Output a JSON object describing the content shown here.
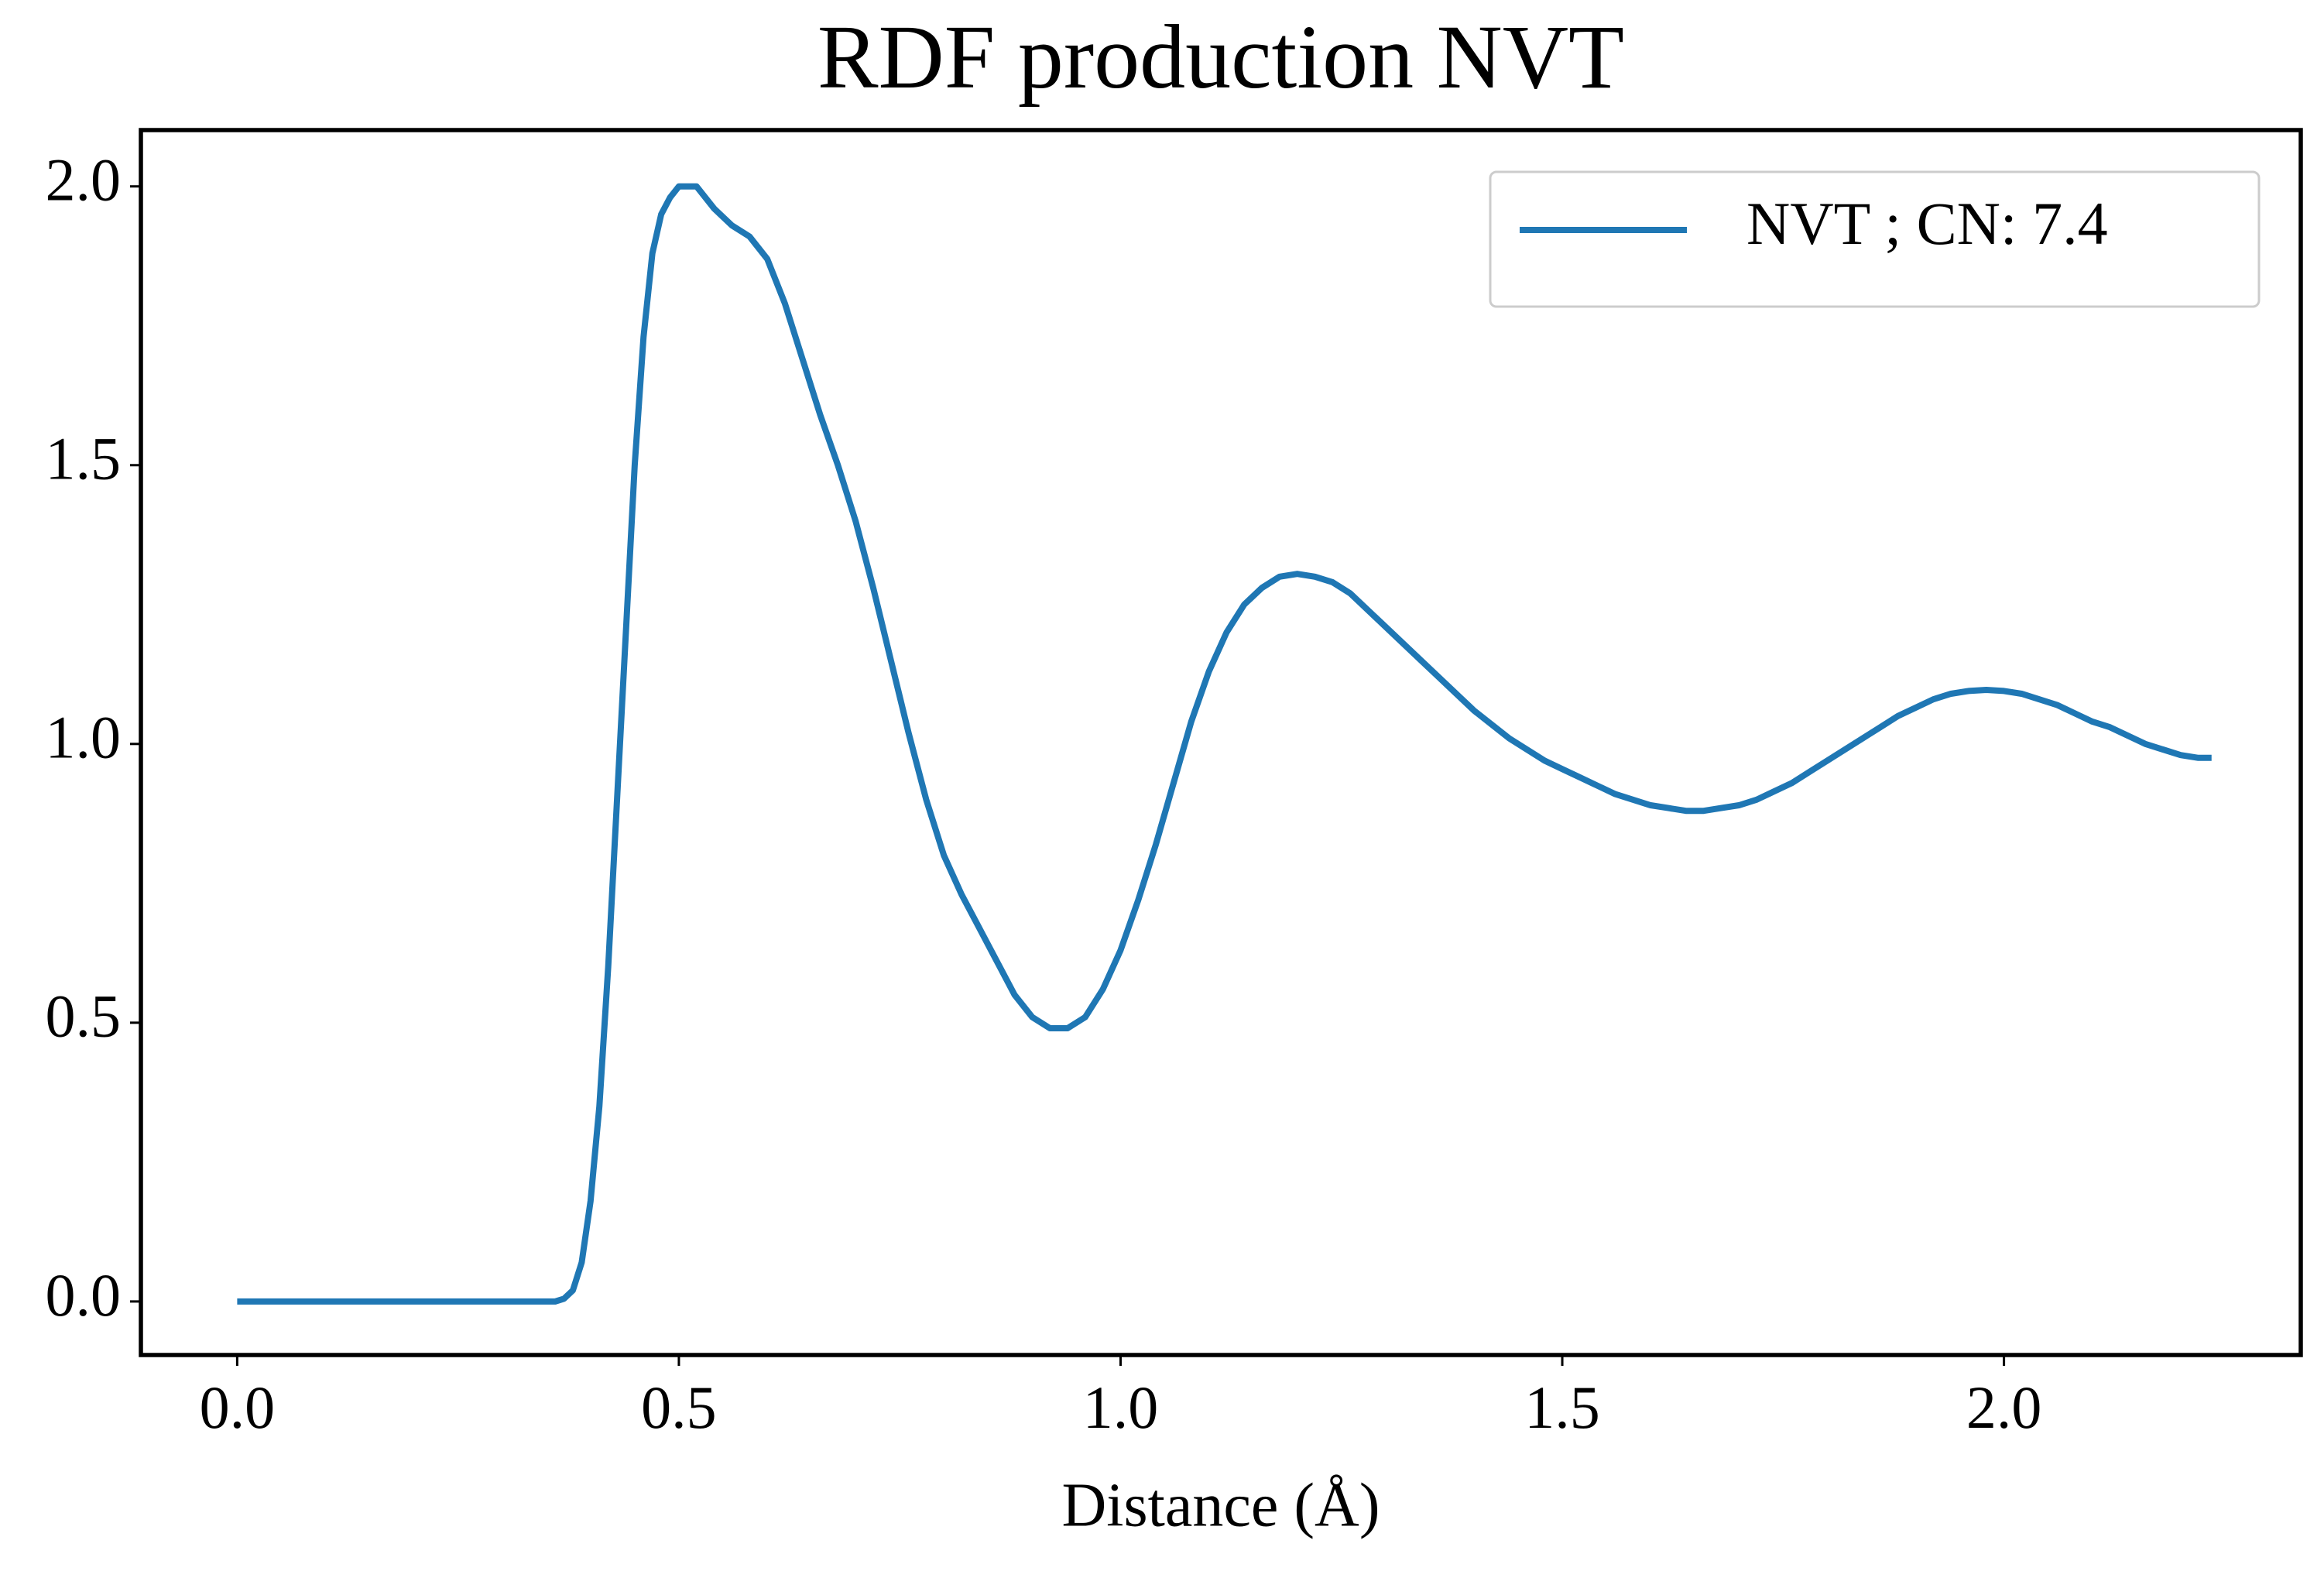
{
  "chart_data": {
    "type": "line",
    "title": "RDF production NVT",
    "xlabel": "Distance (Å)",
    "x": [
      0,
      0.1,
      0.2,
      0.3,
      0.36,
      0.37,
      0.38,
      0.39,
      0.4,
      0.41,
      0.42,
      0.43,
      0.44,
      0.45,
      0.46,
      0.47,
      0.48,
      0.49,
      0.5,
      0.52,
      0.54,
      0.56,
      0.58,
      0.6,
      0.62,
      0.64,
      0.66,
      0.68,
      0.7,
      0.72,
      0.74,
      0.76,
      0.78,
      0.8,
      0.82,
      0.84,
      0.86,
      0.88,
      0.9,
      0.92,
      0.94,
      0.96,
      0.98,
      1.0,
      1.02,
      1.04,
      1.06,
      1.08,
      1.1,
      1.12,
      1.14,
      1.16,
      1.18,
      1.2,
      1.22,
      1.24,
      1.26,
      1.28,
      1.3,
      1.32,
      1.34,
      1.36,
      1.38,
      1.4,
      1.42,
      1.44,
      1.46,
      1.48,
      1.5,
      1.52,
      1.54,
      1.56,
      1.58,
      1.6,
      1.62,
      1.64,
      1.66,
      1.68,
      1.7,
      1.72,
      1.74,
      1.76,
      1.78,
      1.8,
      1.82,
      1.84,
      1.86,
      1.88,
      1.9,
      1.92,
      1.94,
      1.96,
      1.98,
      2.0,
      2.02,
      2.04,
      2.06,
      2.08,
      2.1,
      2.12,
      2.14,
      2.16,
      2.18,
      2.2,
      2.22,
      2.235
    ],
    "series": [
      {
        "name": "NVT ; CN: 7.4",
        "color": "#1f77b4",
        "values": [
          0,
          0,
          0,
          0,
          0,
          0.005,
          0.02,
          0.07,
          0.18,
          0.35,
          0.6,
          0.9,
          1.2,
          1.5,
          1.73,
          1.88,
          1.95,
          1.98,
          2.0,
          2.0,
          1.96,
          1.93,
          1.91,
          1.87,
          1.79,
          1.69,
          1.59,
          1.5,
          1.4,
          1.28,
          1.15,
          1.02,
          0.9,
          0.8,
          0.73,
          0.67,
          0.61,
          0.55,
          0.51,
          0.49,
          0.49,
          0.51,
          0.56,
          0.63,
          0.72,
          0.82,
          0.93,
          1.04,
          1.13,
          1.2,
          1.25,
          1.28,
          1.3,
          1.305,
          1.3,
          1.29,
          1.27,
          1.24,
          1.21,
          1.18,
          1.15,
          1.12,
          1.09,
          1.06,
          1.035,
          1.01,
          0.99,
          0.97,
          0.955,
          0.94,
          0.925,
          0.91,
          0.9,
          0.89,
          0.885,
          0.88,
          0.88,
          0.885,
          0.89,
          0.9,
          0.915,
          0.93,
          0.95,
          0.97,
          0.99,
          1.01,
          1.03,
          1.05,
          1.065,
          1.08,
          1.09,
          1.095,
          1.097,
          1.095,
          1.09,
          1.08,
          1.07,
          1.055,
          1.04,
          1.03,
          1.015,
          1.0,
          0.99,
          0.98,
          0.975,
          0.975
        ]
      }
    ],
    "xlim": [
      -0.109,
      2.336
    ],
    "ylim": [
      -0.096,
      2.101
    ],
    "xticks": [
      {
        "value": 0,
        "label": "0.0"
      },
      0.5,
      {
        "value": 1,
        "label": "1.0"
      },
      1.5,
      {
        "value": 2,
        "label": "2.0"
      }
    ],
    "yticks": [
      {
        "value": 0,
        "label": "0.0"
      },
      0.5,
      {
        "value": 1,
        "label": "1.0"
      },
      1.5,
      {
        "value": 2,
        "label": "2.0"
      }
    ],
    "legend": "upper right",
    "grid": false
  }
}
